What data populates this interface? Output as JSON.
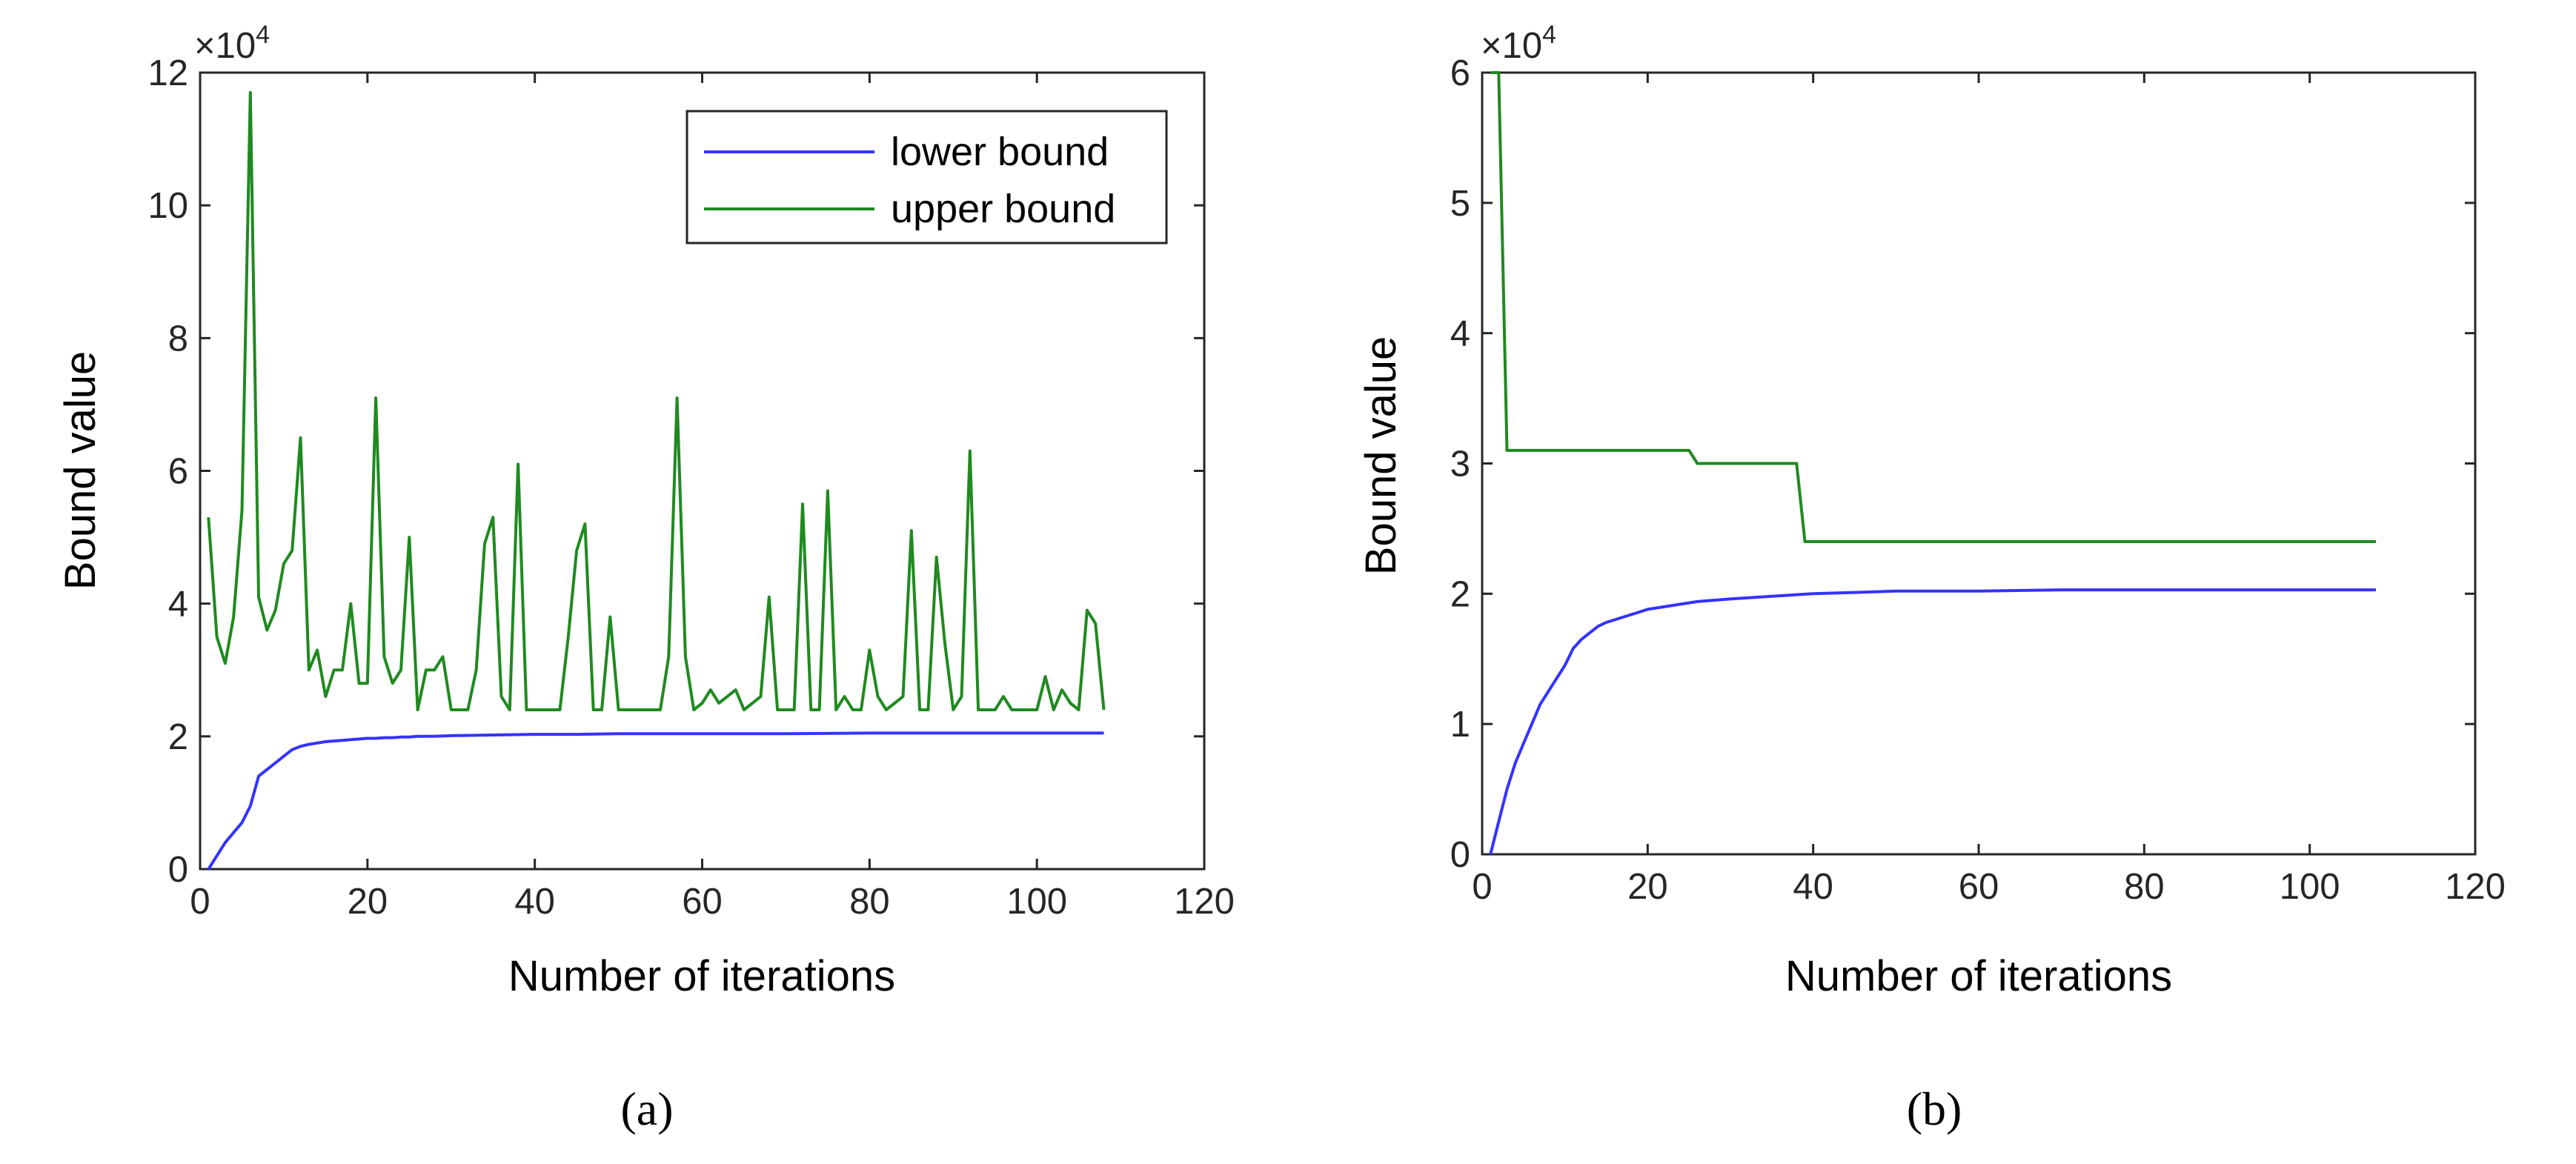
{
  "chart_data": [
    {
      "type": "line",
      "panel": "(a)",
      "xlabel": "Number of iterations",
      "ylabel": "Bound value",
      "y_multiplier": "×10",
      "y_multiplier_exp": "4",
      "xlim": [
        0,
        120
      ],
      "ylim": [
        0,
        12
      ],
      "xticks": [
        0,
        20,
        40,
        60,
        80,
        100,
        120
      ],
      "yticks": [
        0,
        2,
        4,
        6,
        8,
        10,
        12
      ],
      "legend": {
        "position": "top-right",
        "entries": [
          "lower bound",
          "upper bound"
        ]
      },
      "series": [
        {
          "name": "lower bound",
          "color": "#3333ff",
          "x": [
            1,
            2,
            3,
            4,
            5,
            6,
            7,
            8,
            9,
            10,
            11,
            12,
            13,
            14,
            15,
            16,
            17,
            18,
            19,
            20,
            21,
            22,
            23,
            24,
            25,
            26,
            27,
            28,
            30,
            35,
            40,
            45,
            50,
            55,
            60,
            70,
            80,
            90,
            100,
            108
          ],
          "y": [
            0.0,
            0.2,
            0.4,
            0.55,
            0.7,
            0.95,
            1.4,
            1.5,
            1.6,
            1.7,
            1.8,
            1.85,
            1.88,
            1.9,
            1.92,
            1.93,
            1.94,
            1.95,
            1.96,
            1.97,
            1.97,
            1.98,
            1.98,
            1.99,
            1.99,
            2.0,
            2.0,
            2.0,
            2.01,
            2.02,
            2.03,
            2.03,
            2.04,
            2.04,
            2.04,
            2.04,
            2.05,
            2.05,
            2.05,
            2.05
          ]
        },
        {
          "name": "upper bound",
          "color": "#1f8a1f",
          "x": [
            1,
            2,
            3,
            4,
            5,
            6,
            7,
            8,
            9,
            10,
            11,
            12,
            13,
            14,
            15,
            16,
            17,
            18,
            19,
            20,
            21,
            22,
            23,
            24,
            25,
            26,
            27,
            28,
            29,
            30,
            31,
            32,
            33,
            34,
            35,
            36,
            37,
            38,
            39,
            40,
            41,
            42,
            43,
            44,
            45,
            46,
            47,
            48,
            49,
            50,
            51,
            52,
            53,
            54,
            55,
            56,
            57,
            58,
            59,
            60,
            61,
            62,
            63,
            64,
            65,
            66,
            67,
            68,
            69,
            70,
            71,
            72,
            73,
            74,
            75,
            76,
            77,
            78,
            79,
            80,
            81,
            82,
            83,
            84,
            85,
            86,
            87,
            88,
            89,
            90,
            91,
            92,
            93,
            94,
            95,
            96,
            97,
            98,
            99,
            100,
            101,
            102,
            103,
            104,
            105,
            106,
            107,
            108
          ],
          "y": [
            5.3,
            3.5,
            3.1,
            3.8,
            5.4,
            11.7,
            4.1,
            3.6,
            3.9,
            4.6,
            4.8,
            6.5,
            3.0,
            3.3,
            2.6,
            3.0,
            3.0,
            4.0,
            2.8,
            2.8,
            7.1,
            3.2,
            2.8,
            3.0,
            5.0,
            2.4,
            3.0,
            3.0,
            3.2,
            2.4,
            2.4,
            2.4,
            3.0,
            4.9,
            5.3,
            2.6,
            2.4,
            6.1,
            2.4,
            2.4,
            2.4,
            2.4,
            2.4,
            3.5,
            4.8,
            5.2,
            2.4,
            2.4,
            3.8,
            2.4,
            2.4,
            2.4,
            2.4,
            2.4,
            2.4,
            3.2,
            7.1,
            3.2,
            2.4,
            2.5,
            2.7,
            2.5,
            2.6,
            2.7,
            2.4,
            2.5,
            2.6,
            4.1,
            2.4,
            2.4,
            2.4,
            5.5,
            2.4,
            2.4,
            5.7,
            2.4,
            2.6,
            2.4,
            2.4,
            3.3,
            2.6,
            2.4,
            2.5,
            2.6,
            5.1,
            2.4,
            2.4,
            4.7,
            3.4,
            2.4,
            2.6,
            6.3,
            2.4,
            2.4,
            2.4,
            2.6,
            2.4,
            2.4,
            2.4,
            2.4,
            2.9,
            2.4,
            2.7,
            2.5,
            2.4,
            3.9,
            3.7,
            2.4
          ]
        }
      ]
    },
    {
      "type": "line",
      "panel": "(b)",
      "xlabel": "Number of iterations",
      "ylabel": "Bound value",
      "y_multiplier": "×10",
      "y_multiplier_exp": "4",
      "xlim": [
        0,
        120
      ],
      "ylim": [
        0,
        6
      ],
      "xticks": [
        0,
        20,
        40,
        60,
        80,
        100,
        120
      ],
      "yticks": [
        0,
        1,
        2,
        3,
        4,
        5,
        6
      ],
      "series": [
        {
          "name": "lower bound",
          "color": "#3333ff",
          "x": [
            1,
            2,
            3,
            4,
            5,
            6,
            7,
            8,
            9,
            10,
            11,
            12,
            13,
            14,
            15,
            16,
            17,
            18,
            19,
            20,
            22,
            24,
            26,
            28,
            30,
            35,
            40,
            45,
            50,
            60,
            70,
            80,
            90,
            100,
            108
          ],
          "y": [
            0.0,
            0.25,
            0.5,
            0.7,
            0.85,
            1.0,
            1.15,
            1.25,
            1.35,
            1.45,
            1.58,
            1.65,
            1.7,
            1.75,
            1.78,
            1.8,
            1.82,
            1.84,
            1.86,
            1.88,
            1.9,
            1.92,
            1.94,
            1.95,
            1.96,
            1.98,
            2.0,
            2.01,
            2.02,
            2.02,
            2.03,
            2.03,
            2.03,
            2.03,
            2.03
          ]
        },
        {
          "name": "upper bound",
          "color": "#1f8a1f",
          "x": [
            1,
            2,
            3,
            25,
            26,
            38,
            39,
            108
          ],
          "y": [
            6.0,
            6.0,
            3.1,
            3.1,
            3.0,
            3.0,
            2.4,
            2.4
          ]
        }
      ]
    }
  ],
  "captions": [
    "(a)",
    "(b)"
  ]
}
